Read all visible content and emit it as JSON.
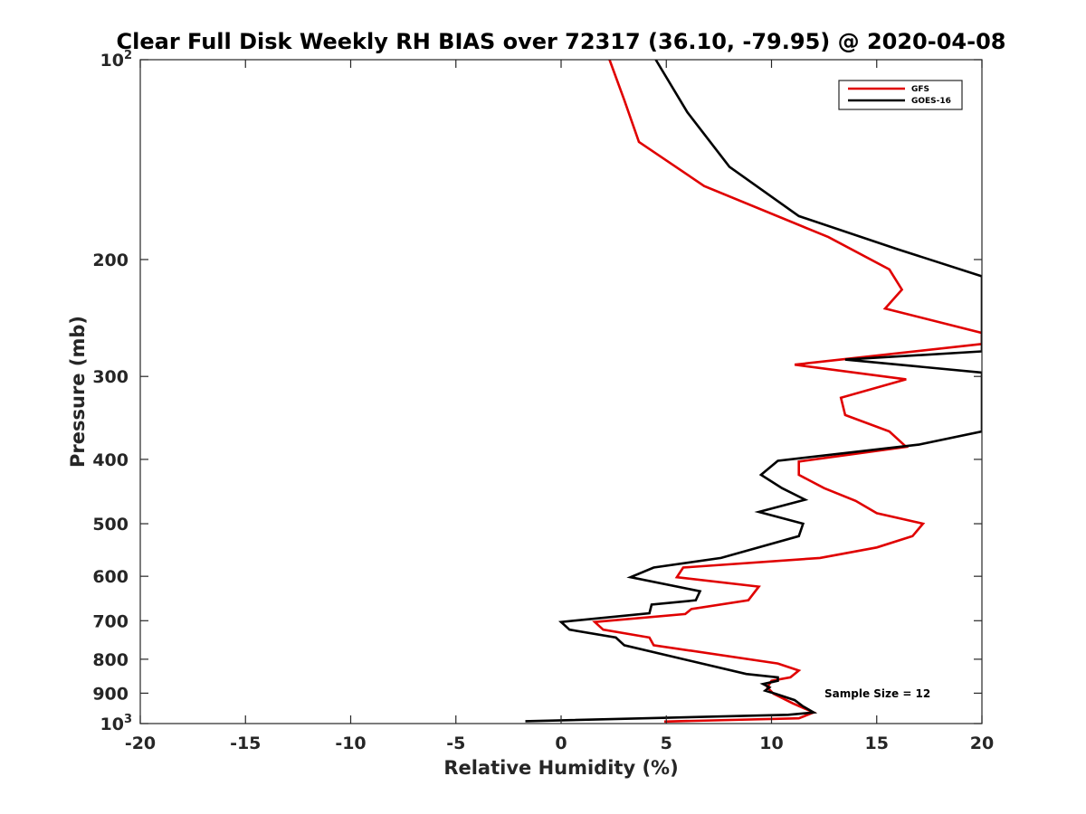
{
  "chart_data": {
    "type": "line",
    "title": "Clear Full Disk Weekly RH BIAS over 72317 (36.10, -79.95) @ 2020-04-08",
    "xlabel": "Relative Humidity (%)",
    "ylabel": "Pressure (mb)",
    "xlim": [
      -20,
      20
    ],
    "ylim": [
      100,
      1000
    ],
    "yscale": "log",
    "y_reversed": true,
    "grid": false,
    "legend_position": "top-right",
    "x_ticks": [
      "-20",
      "-15",
      "-10",
      "-5",
      "0",
      "5",
      "10",
      "15",
      "20"
    ],
    "y_ticks": [
      {
        "value": 100,
        "label": "10",
        "sup": "2"
      },
      {
        "value": 200,
        "label": "200",
        "sup": ""
      },
      {
        "value": 300,
        "label": "300",
        "sup": ""
      },
      {
        "value": 400,
        "label": "400",
        "sup": ""
      },
      {
        "value": 500,
        "label": "500",
        "sup": ""
      },
      {
        "value": 600,
        "label": "600",
        "sup": ""
      },
      {
        "value": 700,
        "label": "700",
        "sup": ""
      },
      {
        "value": 800,
        "label": "800",
        "sup": ""
      },
      {
        "value": 900,
        "label": "900",
        "sup": ""
      },
      {
        "value": 1000,
        "label": "10",
        "sup": "3"
      }
    ],
    "annotation": "Sample Size = 12",
    "series": [
      {
        "name": "GFS",
        "color": "#e00000",
        "points": [
          [
            2.3,
            100
          ],
          [
            3.0,
            115
          ],
          [
            3.7,
            133
          ],
          [
            6.8,
            155
          ],
          [
            12.7,
            185
          ],
          [
            15.6,
            207
          ],
          [
            16.2,
            222
          ],
          [
            15.4,
            237
          ],
          [
            20.0,
            258
          ],
          [
            20.0,
            268
          ],
          [
            11.1,
            288
          ],
          [
            16.4,
            303
          ],
          [
            13.3,
            323
          ],
          [
            13.5,
            343
          ],
          [
            15.6,
            363
          ],
          [
            16.4,
            383
          ],
          [
            11.3,
            403
          ],
          [
            11.3,
            422
          ],
          [
            12.5,
            442
          ],
          [
            14.0,
            462
          ],
          [
            15.0,
            482
          ],
          [
            17.2,
            500
          ],
          [
            16.7,
            522
          ],
          [
            15.0,
            543
          ],
          [
            12.3,
            563
          ],
          [
            5.8,
            582
          ],
          [
            5.5,
            602
          ],
          [
            9.4,
            622
          ],
          [
            8.9,
            652
          ],
          [
            6.2,
            672
          ],
          [
            5.9,
            684
          ],
          [
            1.6,
            703
          ],
          [
            2.0,
            722
          ],
          [
            4.2,
            742
          ],
          [
            4.4,
            762
          ],
          [
            10.3,
            812
          ],
          [
            11.3,
            832
          ],
          [
            10.9,
            852
          ],
          [
            10.0,
            862
          ],
          [
            9.8,
            882
          ],
          [
            10.1,
            902
          ],
          [
            11.0,
            932
          ],
          [
            12.0,
            962
          ],
          [
            11.3,
            982
          ],
          [
            4.9,
            993
          ]
        ]
      },
      {
        "name": "GOES-16",
        "color": "#000000",
        "points": [
          [
            4.5,
            100
          ],
          [
            6.0,
            120
          ],
          [
            8.0,
            145
          ],
          [
            11.3,
            172
          ],
          [
            16.0,
            193
          ],
          [
            20.0,
            212
          ],
          [
            20.0,
            275
          ],
          [
            13.5,
            283
          ],
          [
            20.0,
            296
          ],
          [
            20.0,
            363
          ],
          [
            17.0,
            380
          ],
          [
            10.3,
            402
          ],
          [
            9.5,
            422
          ],
          [
            10.5,
            442
          ],
          [
            11.6,
            460
          ],
          [
            9.4,
            480
          ],
          [
            11.5,
            500
          ],
          [
            11.3,
            522
          ],
          [
            7.6,
            563
          ],
          [
            4.4,
            582
          ],
          [
            3.3,
            602
          ],
          [
            6.6,
            632
          ],
          [
            6.4,
            652
          ],
          [
            4.3,
            662
          ],
          [
            4.2,
            682
          ],
          [
            0.0,
            703
          ],
          [
            0.4,
            722
          ],
          [
            2.6,
            742
          ],
          [
            3.0,
            762
          ],
          [
            8.8,
            842
          ],
          [
            10.3,
            852
          ],
          [
            10.3,
            862
          ],
          [
            9.6,
            872
          ],
          [
            9.9,
            882
          ],
          [
            9.7,
            892
          ],
          [
            10.2,
            902
          ],
          [
            11.1,
            922
          ],
          [
            11.5,
            942
          ],
          [
            12.0,
            962
          ],
          [
            10.8,
            970
          ],
          [
            -1.7,
            992
          ]
        ]
      }
    ]
  }
}
